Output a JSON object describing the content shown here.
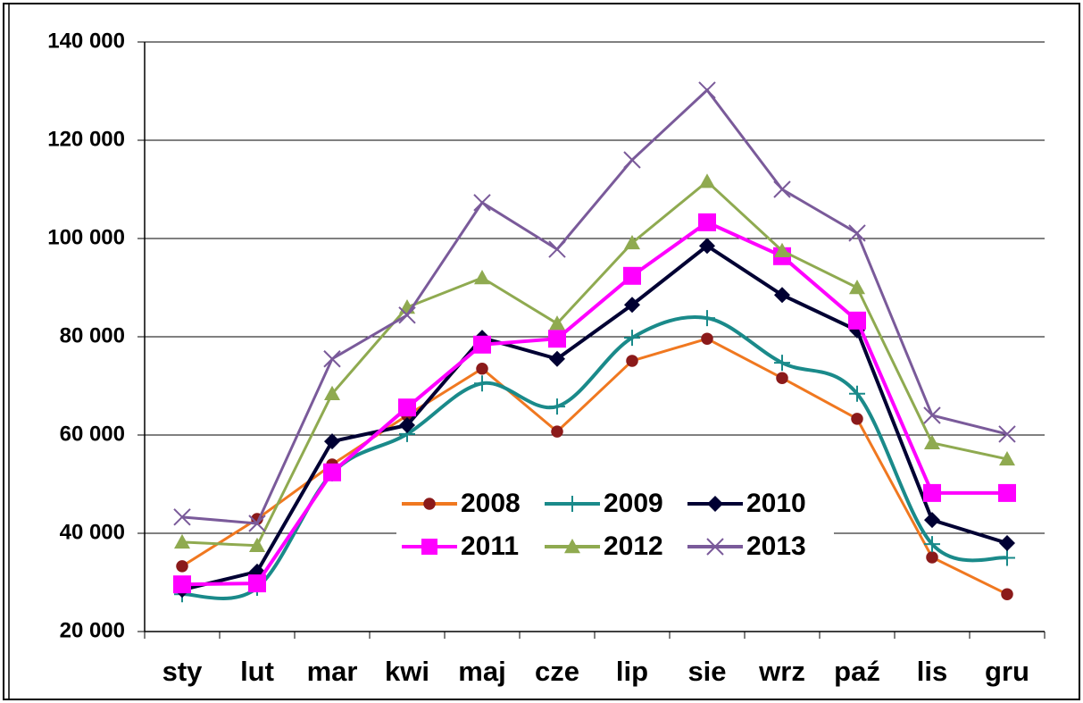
{
  "chart_data": {
    "type": "line",
    "categories": [
      "sty",
      "lut",
      "mar",
      "kwi",
      "maj",
      "cze",
      "lip",
      "sie",
      "wrz",
      "paź",
      "lis",
      "gru"
    ],
    "series": [
      {
        "name": "2008",
        "color": "#f07820",
        "marker": "circle",
        "marker_color": "#8b1a1a",
        "values": [
          33300,
          42900,
          54000,
          64000,
          73500,
          60700,
          75100,
          79600,
          71600,
          63300,
          35100,
          27600
        ]
      },
      {
        "name": "2009",
        "color": "#1a8a8a",
        "marker": "plus",
        "smooth": true,
        "values": [
          27600,
          28900,
          52200,
          60200,
          70500,
          65800,
          79800,
          83800,
          74700,
          68400,
          37800,
          35000
        ]
      },
      {
        "name": "2010",
        "color": "#000033",
        "marker": "diamond",
        "values": [
          28500,
          32200,
          58700,
          62000,
          79800,
          75500,
          86500,
          98500,
          88500,
          81300,
          42700,
          38000
        ]
      },
      {
        "name": "2011",
        "color": "#ff00ff",
        "marker": "square",
        "values": [
          29600,
          29800,
          52400,
          65600,
          78400,
          79600,
          92400,
          103300,
          96400,
          83300,
          48200,
          48200
        ]
      },
      {
        "name": "2012",
        "color": "#8faa50",
        "marker": "triangle",
        "values": [
          38200,
          37500,
          68400,
          86000,
          92000,
          82700,
          99100,
          111600,
          97500,
          90000,
          58400,
          55100
        ]
      },
      {
        "name": "2013",
        "color": "#7a5a9a",
        "marker": "x",
        "values": [
          43300,
          42000,
          75500,
          84400,
          107300,
          97800,
          116000,
          130200,
          110000,
          101100,
          64000,
          60200
        ]
      }
    ],
    "ylim": [
      20000,
      140000
    ],
    "yticks": [
      {
        "value": 20000,
        "label": "20 000"
      },
      {
        "value": 40000,
        "label": "40 000"
      },
      {
        "value": 60000,
        "label": "60 000"
      },
      {
        "value": 80000,
        "label": "80 000"
      },
      {
        "value": 100000,
        "label": "100 000"
      },
      {
        "value": 120000,
        "label": "120 000"
      },
      {
        "value": 140000,
        "label": "140 000"
      }
    ],
    "grid": true
  }
}
